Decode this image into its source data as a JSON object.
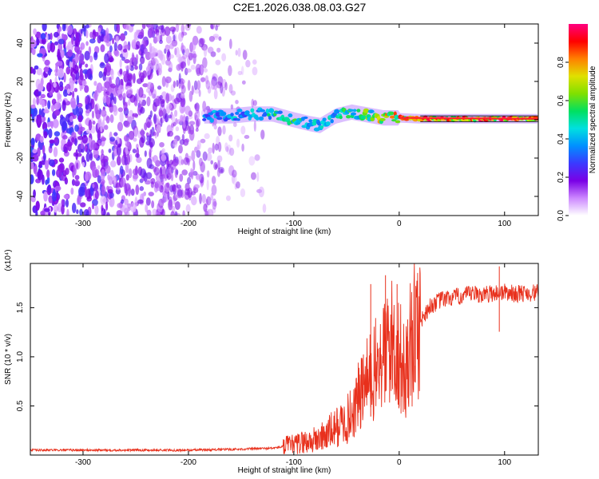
{
  "figure_title": "C2E1.2026.038.08.03.G27",
  "chart_data": [
    {
      "type": "heatmap",
      "xlabel": "Height of straight line (km)",
      "ylabel": "Frequency (Hz)",
      "xlim": [
        -350,
        132
      ],
      "ylim": [
        -50,
        50
      ],
      "x_ticks": [
        -300,
        -200,
        -100,
        0,
        100
      ],
      "y_ticks": [
        -40,
        -20,
        0,
        20,
        40
      ],
      "colorbar": {
        "label": "Normalized spectral amplitude",
        "range": [
          0,
          1
        ],
        "ticks": [
          0.0,
          0.2,
          0.4,
          0.6,
          0.8
        ],
        "colors": [
          "#ffffff",
          "#cc88ff",
          "#7a00e6",
          "#3a3aff",
          "#0090ff",
          "#00e0e0",
          "#00e060",
          "#80e000",
          "#e0e000",
          "#ff8000",
          "#ff0000",
          "#ff0080"
        ]
      },
      "ridge": {
        "x": [
          -185,
          -160,
          -140,
          -120,
          -100,
          -85,
          -75,
          -60,
          -45,
          -35,
          -25,
          -15,
          0,
          20,
          60,
          132
        ],
        "frequency": [
          2,
          2,
          3,
          3,
          0,
          -2,
          -3,
          2,
          4,
          3,
          2,
          1,
          1,
          0.5,
          0.5,
          0.5
        ],
        "peak_amplitude": [
          0.4,
          0.45,
          0.5,
          0.55,
          0.6,
          0.55,
          0.45,
          0.55,
          0.6,
          0.65,
          0.7,
          0.8,
          0.9,
          0.95,
          0.95,
          0.95
        ]
      },
      "noise_region": {
        "x_range": [
          -350,
          -125
        ],
        "frequency_range": [
          -50,
          50
        ],
        "amplitude_range": [
          0.05,
          0.3
        ]
      }
    },
    {
      "type": "line",
      "xlabel": "Height of straight line (km)",
      "ylabel": "SNR (10 * v/v)",
      "y_scale_label": "(x10⁴)",
      "xlim": [
        -350,
        132
      ],
      "ylim": [
        0,
        1.95
      ],
      "x_ticks": [
        -300,
        -200,
        -100,
        0,
        100
      ],
      "y_ticks": [
        0.5,
        1.0,
        1.5
      ],
      "series": [
        {
          "color": "#e8301c",
          "x": [
            -350,
            -300,
            -250,
            -200,
            -150,
            -120,
            -100,
            -90,
            -80,
            -70,
            -60,
            -50,
            -45,
            -40,
            -35,
            -30,
            -25,
            -20,
            -15,
            -10,
            -5,
            0,
            5,
            10,
            15,
            20,
            25,
            30,
            40,
            50,
            60,
            70,
            80,
            90,
            100,
            110,
            120,
            132
          ],
          "values": [
            0.05,
            0.05,
            0.05,
            0.05,
            0.06,
            0.07,
            0.1,
            0.13,
            0.15,
            0.2,
            0.28,
            0.35,
            0.42,
            0.55,
            0.65,
            0.75,
            0.82,
            0.9,
            1.0,
            1.12,
            1.15,
            1.02,
            0.8,
            1.1,
            1.25,
            1.35,
            1.45,
            1.52,
            1.58,
            1.6,
            1.62,
            1.64,
            1.63,
            1.65,
            1.66,
            1.64,
            1.65,
            1.65
          ]
        }
      ],
      "spikes": [
        {
          "x": -27,
          "value": 1.74
        },
        {
          "x": -13,
          "value": 1.83
        },
        {
          "x": -2,
          "value": 1.74
        },
        {
          "x": 8,
          "value": 1.38
        },
        {
          "x": 95,
          "value": 1.92
        }
      ]
    }
  ]
}
